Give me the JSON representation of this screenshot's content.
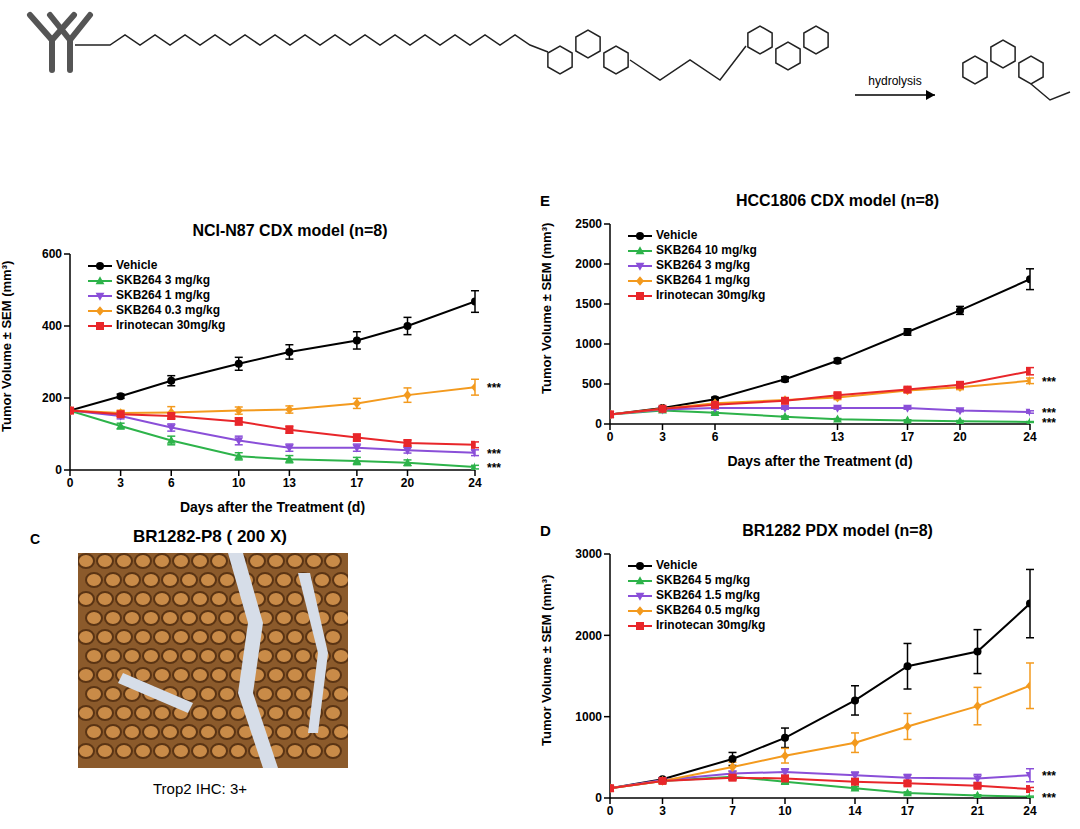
{
  "chart_data": [
    {
      "type": "line",
      "title": "NCI-N87 CDX model (n=8)",
      "x_label": "Days after the Treatment (d)",
      "y_label": "Tumor Volume ± SEM (mm³)",
      "x": [
        0,
        3,
        6,
        10,
        13,
        17,
        20,
        24
      ],
      "xlim": [
        0,
        24
      ],
      "xticks": [
        0,
        3,
        6,
        10,
        13,
        17,
        20,
        24
      ],
      "ylim": [
        0,
        600
      ],
      "yticks": [
        0,
        200,
        400,
        600
      ],
      "legend": "upper left",
      "series": [
        {
          "name": "Vehicle",
          "color": "#000000",
          "marker": "circle",
          "values": [
            165,
            205,
            248,
            295,
            328,
            360,
            400,
            468
          ],
          "errors": [
            0,
            6,
            14,
            18,
            20,
            24,
            24,
            30
          ]
        },
        {
          "name": "SKB264 3 mg/kg",
          "color": "#2db34a",
          "marker": "triangle",
          "values": [
            165,
            122,
            82,
            38,
            30,
            25,
            20,
            8
          ],
          "errors": [
            0,
            8,
            12,
            10,
            10,
            10,
            8,
            5
          ],
          "significance": "***"
        },
        {
          "name": "SKB264 1 mg/kg",
          "color": "#8a4fd8",
          "marker": "triangle-down",
          "values": [
            165,
            150,
            118,
            82,
            62,
            62,
            55,
            48
          ],
          "errors": [
            0,
            8,
            10,
            12,
            10,
            10,
            8,
            8
          ],
          "significance": "***"
        },
        {
          "name": "SKB264 0.3 mg/kg",
          "color": "#f39a1e",
          "marker": "diamond",
          "values": [
            165,
            158,
            160,
            165,
            168,
            185,
            208,
            230
          ],
          "errors": [
            0,
            8,
            16,
            10,
            10,
            14,
            20,
            22
          ],
          "significance": "***"
        },
        {
          "name": "Irinotecan 30mg/kg",
          "color": "#e8262a",
          "marker": "square",
          "values": [
            165,
            155,
            150,
            135,
            112,
            90,
            75,
            70
          ],
          "errors": [
            0,
            6,
            8,
            10,
            10,
            10,
            8,
            8
          ]
        }
      ]
    },
    {
      "type": "line",
      "panel_label": "E",
      "title": "HCC1806 CDX model (n=8)",
      "x_label": "Days after the Treatment (d)",
      "y_label": "Tumor Volume ± SEM (mm³)",
      "x": [
        0,
        3,
        6,
        10,
        13,
        17,
        20,
        24
      ],
      "xlim": [
        0,
        24
      ],
      "xticks": [
        0,
        3,
        6,
        13,
        17,
        20,
        24
      ],
      "ylim": [
        0,
        2500
      ],
      "yticks": [
        0,
        500,
        1000,
        1500,
        2000,
        2500
      ],
      "legend": "upper left",
      "series": [
        {
          "name": "Vehicle",
          "color": "#000000",
          "marker": "circle",
          "values": [
            120,
            200,
            310,
            560,
            790,
            1150,
            1420,
            1810
          ],
          "errors": [
            0,
            15,
            25,
            30,
            30,
            40,
            50,
            130
          ]
        },
        {
          "name": "SKB264 10 mg/kg",
          "color": "#2db34a",
          "marker": "triangle",
          "values": [
            120,
            170,
            140,
            90,
            60,
            45,
            35,
            25
          ],
          "errors": [
            0,
            10,
            10,
            10,
            8,
            8,
            8,
            6
          ],
          "significance": "***"
        },
        {
          "name": "SKB264 3 mg/kg",
          "color": "#8a4fd8",
          "marker": "triangle-down",
          "values": [
            120,
            180,
            200,
            200,
            200,
            200,
            170,
            150
          ],
          "errors": [
            0,
            10,
            15,
            15,
            15,
            15,
            15,
            15
          ],
          "significance": "***"
        },
        {
          "name": "SKB264 1 mg/kg",
          "color": "#f39a1e",
          "marker": "diamond",
          "values": [
            120,
            190,
            260,
            300,
            330,
            420,
            460,
            540
          ],
          "errors": [
            0,
            12,
            20,
            20,
            25,
            25,
            30,
            35
          ],
          "significance": "***"
        },
        {
          "name": "Irinotecan 30mg/kg",
          "color": "#e8262a",
          "marker": "square",
          "values": [
            120,
            190,
            240,
            290,
            360,
            430,
            490,
            660
          ],
          "errors": [
            0,
            12,
            20,
            20,
            25,
            30,
            35,
            45
          ]
        }
      ]
    },
    {
      "type": "line",
      "panel_label": "D",
      "title": "BR1282 PDX model (n=8)",
      "x_label": "Days after the Treatment (d)",
      "y_label": "Tumor Volume ± SEM (mm³)",
      "x": [
        0,
        3,
        7,
        10,
        14,
        17,
        21,
        24
      ],
      "xlim": [
        0,
        24
      ],
      "xticks": [
        0,
        3,
        7,
        10,
        14,
        17,
        21,
        24
      ],
      "ylim": [
        0,
        3000
      ],
      "yticks": [
        0,
        1000,
        2000,
        3000
      ],
      "legend": "upper left",
      "series": [
        {
          "name": "Vehicle",
          "color": "#000000",
          "marker": "circle",
          "values": [
            120,
            230,
            480,
            740,
            1200,
            1620,
            1800,
            2390
          ],
          "errors": [
            0,
            20,
            80,
            120,
            180,
            280,
            270,
            420
          ]
        },
        {
          "name": "SKB264 5 mg/kg",
          "color": "#2db34a",
          "marker": "triangle",
          "values": [
            120,
            210,
            260,
            200,
            120,
            60,
            30,
            15
          ],
          "errors": [
            0,
            15,
            30,
            25,
            20,
            15,
            10,
            8
          ],
          "significance": "***"
        },
        {
          "name": "SKB264 1.5 mg/kg",
          "color": "#8a4fd8",
          "marker": "triangle-down",
          "values": [
            120,
            220,
            300,
            320,
            280,
            250,
            240,
            280
          ],
          "errors": [
            0,
            15,
            30,
            40,
            40,
            40,
            50,
            80
          ],
          "significance": "***"
        },
        {
          "name": "SKB264 0.5 mg/kg",
          "color": "#f39a1e",
          "marker": "diamond",
          "values": [
            120,
            210,
            380,
            520,
            680,
            880,
            1130,
            1380
          ],
          "errors": [
            0,
            20,
            60,
            90,
            120,
            160,
            230,
            280
          ]
        },
        {
          "name": "Irinotecan 30mg/kg",
          "color": "#e8262a",
          "marker": "square",
          "values": [
            120,
            210,
            250,
            240,
            200,
            180,
            150,
            110
          ],
          "errors": [
            0,
            15,
            30,
            30,
            25,
            25,
            20,
            20
          ]
        }
      ]
    }
  ],
  "scheme": {
    "arrow_label": "hydrolysis"
  },
  "image_panel": {
    "panel_label": "C",
    "title": "BR1282-P8 ( 200 X)",
    "caption": "Trop2 IHC: 3+"
  }
}
